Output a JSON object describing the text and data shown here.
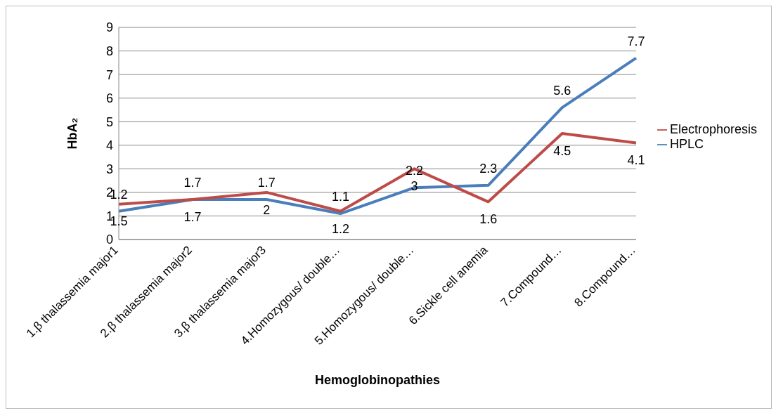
{
  "chart_data": {
    "type": "line",
    "xlabel": "Hemoglobinopathies",
    "ylabel": "HbA₂",
    "categories": [
      "1.β thalassemia major1",
      "2.β thalassemia major2",
      "3.β thalassemia major3",
      "4.Homozygous/ double…",
      "5.Homozygous/ double…",
      "6.Sickle cell anemia",
      "7.Compound…",
      "8.Compound…"
    ],
    "series": [
      {
        "name": "HPLC",
        "color": "#4a7ebb",
        "values": [
          1.2,
          1.7,
          1.7,
          1.1,
          2.2,
          2.3,
          5.6,
          7.7
        ]
      },
      {
        "name": "Electrophoresis",
        "color": "#be4b48",
        "values": [
          1.5,
          1.7,
          2,
          1.2,
          3,
          1.6,
          4.5,
          4.1
        ]
      }
    ],
    "ylim": [
      0,
      9
    ],
    "yticks": [
      0,
      1,
      2,
      3,
      4,
      5,
      6,
      7,
      8,
      9
    ],
    "grid": "y",
    "legend": "right",
    "data_labels": true,
    "marker": "none",
    "line_style": "solid"
  }
}
